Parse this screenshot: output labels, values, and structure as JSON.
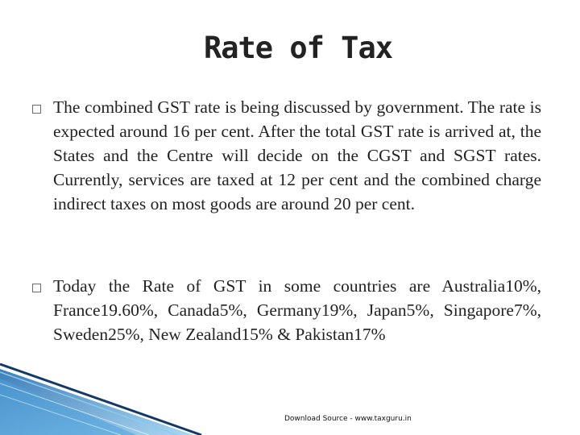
{
  "slide": {
    "title": "Rate of Tax",
    "bullets": [
      "The combined GST rate is being discussed by government. The rate is expected around 16 per cent. After the total GST rate is arrived at, the States and the Centre will decide on the CGST and SGST rates. Currently, services are taxed at 12 per cent and the combined charge indirect taxes on most goods are around 20 per cent.",
      "Today the Rate of GST in some countries are Australia10%, France19.60%, Canada5%, Germany19%, Japan5%, Singapore7%, Sweden25%, New Zealand15% & Pakistan17%"
    ],
    "footer": "Download Source - www.taxguru.in"
  },
  "icons": {
    "bullet_marker": "square-bullet-icon"
  },
  "colors": {
    "text": "#222222",
    "accent_blue": "#3a8fd0",
    "accent_dark": "#123a66"
  }
}
